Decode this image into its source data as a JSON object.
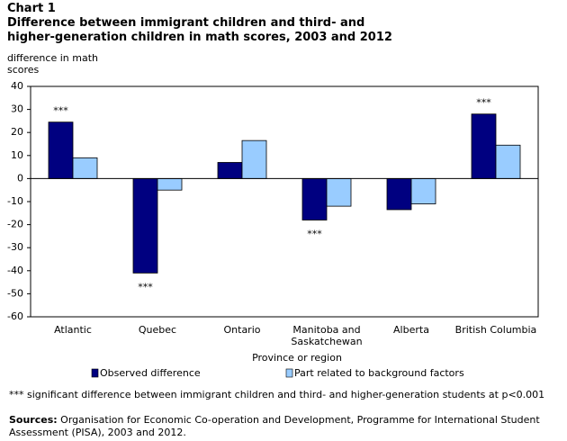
{
  "chart_data": {
    "type": "bar",
    "chart_label": "Chart 1",
    "title_lines": [
      "Difference between immigrant children and third- and",
      "higher-generation children in math scores, 2003 and 2012"
    ],
    "y_label": "difference in math scores",
    "x_label": "Province or region",
    "categories": [
      "Atlantic",
      "Quebec",
      "Ontario",
      "Manitoba and Saskatchewan",
      "Alberta",
      "British Columbia"
    ],
    "series": [
      {
        "name": "Observed difference",
        "color": "#000080",
        "values": [
          24.5,
          -41,
          7,
          -18,
          -13.5,
          28
        ],
        "significance_markers": [
          "***",
          "***",
          null,
          "***",
          null,
          "***"
        ]
      },
      {
        "name": "Part related to background factors",
        "color": "#99ccff",
        "values": [
          9,
          -5,
          16.5,
          -12,
          -11,
          14.5
        ]
      }
    ],
    "ylim": [
      -60,
      40
    ],
    "yticks": [
      -60,
      -50,
      -40,
      -30,
      -20,
      -10,
      0,
      10,
      20,
      30,
      40
    ],
    "note": "*** significant difference between immigrant children and third- and higher-generation students at p<0.001",
    "sources_label": "Sources:",
    "sources": "Organisation for Economic Co-operation and Development, Programme for International Student Assessment (PISA), 2003 and 2012."
  }
}
